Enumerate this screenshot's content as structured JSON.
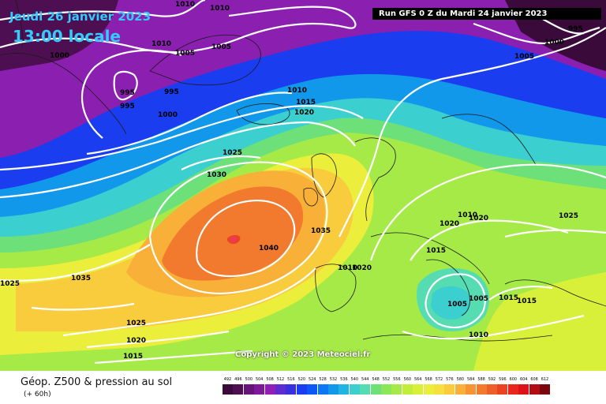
{
  "header": {
    "date": "Jeudi 26 janvier 2023",
    "time": "13:00 locale",
    "run": "Run GFS 0 Z du Mardi 24 janvier 2023"
  },
  "copyright": "Copyright © 2023 Meteociel.fr",
  "footer": {
    "title": "Géop. Z500 & pression au sol",
    "subtitle": "(+ 60h)"
  },
  "legend": {
    "values": [
      "492",
      "496",
      "500",
      "504",
      "508",
      "512",
      "516",
      "520",
      "524",
      "528",
      "532",
      "536",
      "540",
      "544",
      "548",
      "552",
      "556",
      "560",
      "564",
      "568",
      "572",
      "576",
      "580",
      "584",
      "588",
      "592",
      "596",
      "600",
      "604",
      "608",
      "612"
    ],
    "colors": [
      "#3a0a3a",
      "#4e0f52",
      "#66147a",
      "#7c1a9a",
      "#8f1fb5",
      "#5d2bd0",
      "#3a2fe0",
      "#1b3df0",
      "#0d58f5",
      "#0d78f5",
      "#1298ea",
      "#22b4e0",
      "#3ccfd0",
      "#55dcb0",
      "#6ee07a",
      "#8ce65a",
      "#a6ea48",
      "#c0ee3a",
      "#d8f03a",
      "#ecee3c",
      "#f6e040",
      "#f8cc3c",
      "#f8b038",
      "#f69434",
      "#f27a2e",
      "#ee5e28",
      "#ea4222",
      "#e8261e",
      "#dc141a",
      "#b20c14",
      "#7a060c"
    ]
  },
  "map": {
    "pressure_labels": [
      {
        "text": "1010"
      },
      {
        "text": "1010"
      },
      {
        "text": "1010"
      },
      {
        "text": "1005"
      },
      {
        "text": "1000"
      },
      {
        "text": "1005"
      },
      {
        "text": "995"
      },
      {
        "text": "995"
      },
      {
        "text": "995"
      },
      {
        "text": "1000"
      },
      {
        "text": "1010"
      },
      {
        "text": "1015"
      },
      {
        "text": "1020"
      },
      {
        "text": "1025"
      },
      {
        "text": "1030"
      },
      {
        "text": "1040"
      },
      {
        "text": "1035"
      },
      {
        "text": "1035"
      },
      {
        "text": "1025"
      },
      {
        "text": "1025"
      },
      {
        "text": "1020"
      },
      {
        "text": "1015"
      },
      {
        "text": "1010"
      },
      {
        "text": "1020"
      },
      {
        "text": "1010"
      },
      {
        "text": "1020"
      },
      {
        "text": "1020"
      },
      {
        "text": "1015"
      },
      {
        "text": "1005"
      },
      {
        "text": "1005"
      },
      {
        "text": "1015"
      },
      {
        "text": "1015"
      },
      {
        "text": "1010"
      },
      {
        "text": "1025"
      },
      {
        "text": "1005"
      },
      {
        "text": "995"
      },
      {
        "text": "1000"
      }
    ]
  }
}
